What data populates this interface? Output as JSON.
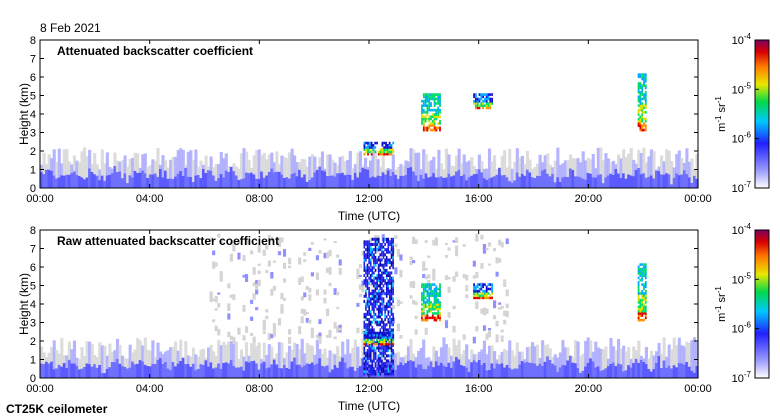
{
  "date_label": "8 Feb 2021",
  "instrument_label": "CT25K ceilometer",
  "chart_data": [
    {
      "type": "heatmap",
      "title": "Attenuated backscatter coefficient",
      "xlabel": "Time (UTC)",
      "ylabel": "Height (km)",
      "xticks": [
        "00:00",
        "04:00",
        "08:00",
        "12:00",
        "16:00",
        "20:00",
        "00:00"
      ],
      "xlim_hours": [
        0,
        24
      ],
      "yticks": [
        0,
        1,
        2,
        3,
        4,
        5,
        6,
        7,
        8
      ],
      "ylim_km": [
        0,
        8
      ],
      "colorbar": {
        "scale": "log",
        "range": [
          1e-07,
          0.0001
        ],
        "ticks": [
          "10-7",
          "10-6",
          "10-5",
          "10-4"
        ],
        "unit_label": "m-1 sr-1"
      },
      "features": [
        {
          "kind": "boundary_layer",
          "t_start": 0,
          "t_end": 24,
          "top_km": 2.3
        },
        {
          "kind": "cloud",
          "t_start": 11.8,
          "t_end": 12.9,
          "base_km": 1.9,
          "top_km": 2.6
        },
        {
          "kind": "cloud",
          "t_start": 13.9,
          "t_end": 14.6,
          "base_km": 3.2,
          "top_km": 5.2
        },
        {
          "kind": "cloud",
          "t_start": 15.8,
          "t_end": 16.5,
          "base_km": 4.4,
          "top_km": 5.2
        },
        {
          "kind": "cloud",
          "t_start": 21.8,
          "t_end": 22.1,
          "base_km": 3.2,
          "top_km": 6.3
        }
      ]
    },
    {
      "type": "heatmap",
      "title": "Raw attenuated backscatter coefficient",
      "xlabel": "Time (UTC)",
      "ylabel": "Height (km)",
      "xticks": [
        "00:00",
        "04:00",
        "08:00",
        "12:00",
        "16:00",
        "20:00",
        "00:00"
      ],
      "xlim_hours": [
        0,
        24
      ],
      "yticks": [
        0,
        1,
        2,
        3,
        4,
        5,
        6,
        7,
        8
      ],
      "ylim_km": [
        0,
        8
      ],
      "colorbar": {
        "scale": "log",
        "range": [
          1e-07,
          0.0001
        ],
        "ticks": [
          "10-7",
          "10-6",
          "10-5",
          "10-4"
        ],
        "unit_label": "m-1 sr-1"
      },
      "features": [
        {
          "kind": "noise_column",
          "t_start": 11.8,
          "t_end": 12.9
        },
        {
          "kind": "cloud",
          "t_start": 11.8,
          "t_end": 12.9,
          "base_km": 1.9,
          "top_km": 2.6
        },
        {
          "kind": "cloud",
          "t_start": 13.9,
          "t_end": 14.6,
          "base_km": 3.2,
          "top_km": 5.2
        },
        {
          "kind": "cloud",
          "t_start": 15.8,
          "t_end": 16.5,
          "base_km": 4.4,
          "top_km": 5.2
        },
        {
          "kind": "cloud",
          "t_start": 21.8,
          "t_end": 22.1,
          "base_km": 3.2,
          "top_km": 6.3
        }
      ]
    }
  ]
}
